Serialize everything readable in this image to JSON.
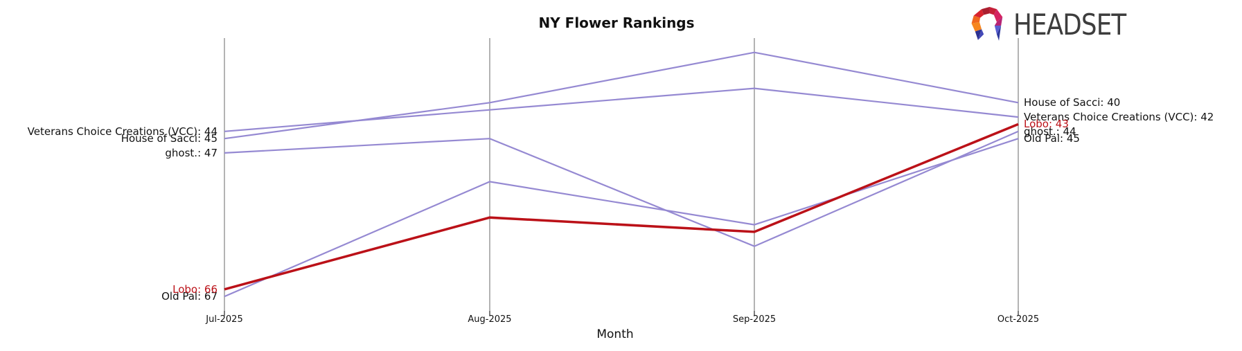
{
  "title": "NY Flower Rankings",
  "logo": {
    "text": "HEADSET",
    "icon": "headset-faceted-arch"
  },
  "x_axis": {
    "label": "Month",
    "ticks": [
      "Jul-2025",
      "Aug-2025",
      "Sep-2025",
      "Oct-2025"
    ]
  },
  "colors": {
    "series_purple": "#9589d2",
    "highlight_red": "#bb1118",
    "axis_line": "#b3b3b3",
    "tick": "#262626",
    "text": "#111111",
    "logo_text": "#3d3d3d"
  },
  "chart_data": {
    "type": "line",
    "variant": "ranking-bump-chart",
    "title": "NY Flower Rankings",
    "xlabel": "Month",
    "ylabel": "",
    "categories": [
      "Jul-2025",
      "Aug-2025",
      "Sep-2025",
      "Oct-2025"
    ],
    "y_inverted": true,
    "ylim": [
      31,
      69
    ],
    "grid": false,
    "legend": "inline endpoint labels on left and right axes",
    "series": [
      {
        "name": "House of Sacci",
        "values": [
          45,
          40,
          33,
          40
        ],
        "color": "#9589d2",
        "highlight": false,
        "left_label": "House of Sacci: 45",
        "right_label": "House of Sacci: 40"
      },
      {
        "name": "Veterans Choice Creations (VCC)",
        "values": [
          44,
          41,
          38,
          42
        ],
        "color": "#9589d2",
        "highlight": false,
        "left_label": "Veterans Choice Creations (VCC): 44",
        "right_label": "Veterans Choice Creations (VCC): 42"
      },
      {
        "name": "ghost.",
        "values": [
          47,
          45,
          60,
          44
        ],
        "color": "#9589d2",
        "highlight": false,
        "left_label": "ghost.: 47",
        "right_label": "ghost.: 44"
      },
      {
        "name": "Old Pal",
        "values": [
          67,
          51,
          57,
          45
        ],
        "color": "#9589d2",
        "highlight": false,
        "left_label": "Old Pal: 67",
        "right_label": "Old Pal: 45"
      },
      {
        "name": "Lobo",
        "values": [
          66,
          56,
          58,
          43
        ],
        "color": "#bb1118",
        "highlight": true,
        "left_label": "Lobo: 66",
        "right_label": "Lobo: 43"
      }
    ]
  }
}
